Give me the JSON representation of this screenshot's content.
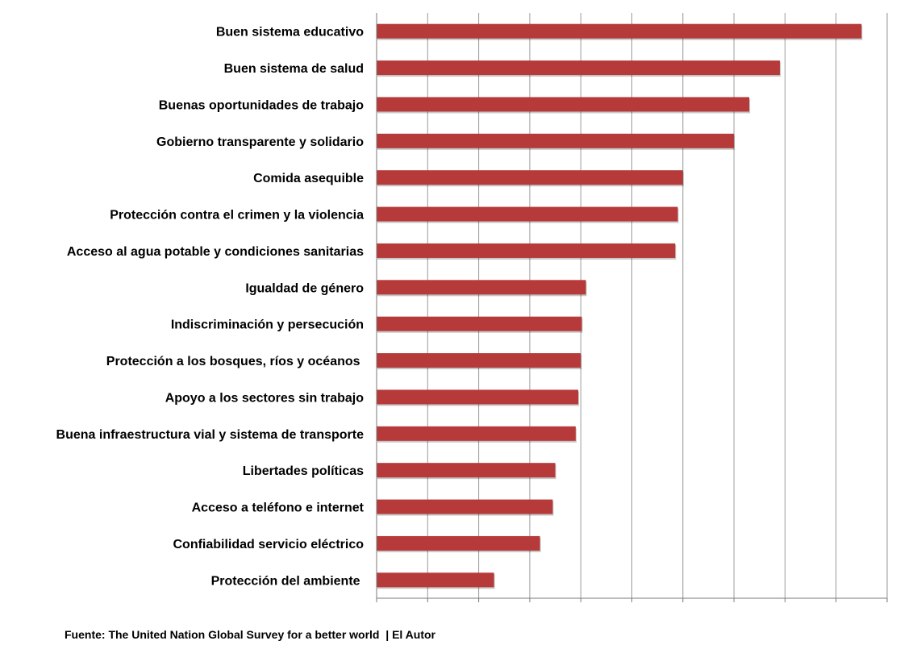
{
  "chart_data": {
    "type": "bar",
    "orientation": "horizontal",
    "categories": [
      "Buen sistema educativo",
      "Buen sistema de salud",
      "Buenas oportunidades de trabajo",
      "Gobierno transparente y solidario",
      "Comida asequible",
      "Protección contra el crimen y la violencia",
      "Acceso al agua potable y condiciones sanitarias",
      "Igualdad de género",
      "Indiscriminación y persecución",
      "Protección a los bosques, ríos y océanos ",
      "Apoyo a los sectores sin trabajo",
      "Buena infraestructura vial y sistema de transporte",
      "Libertades políticas",
      "Acceso a teléfono e internet",
      "Confiabilidad servicio eléctrico",
      "Protección del ambiente "
    ],
    "values": [
      9.5,
      7.9,
      7.3,
      7.0,
      6.0,
      5.9,
      5.85,
      4.1,
      4.02,
      4.0,
      3.95,
      3.9,
      3.5,
      3.45,
      3.2,
      2.3
    ],
    "xlim": [
      0,
      10
    ],
    "grid": true,
    "bar_color": "#b53a39",
    "grid_color": "#9a9a9a",
    "title": "",
    "xlabel": "",
    "ylabel": ""
  },
  "source_text": "Fuente: The United Nation Global Survey for a better world  | El Autor"
}
